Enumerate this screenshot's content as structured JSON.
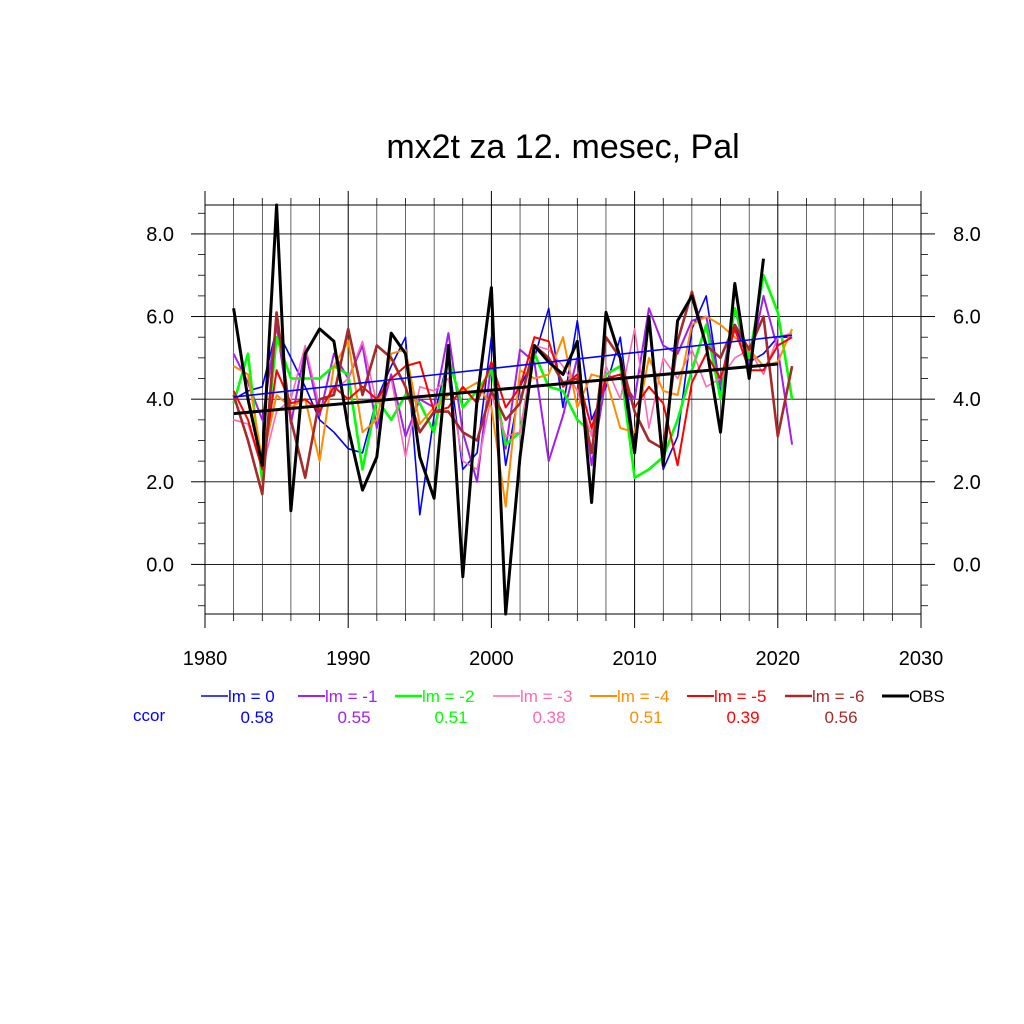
{
  "chart_data": {
    "type": "line",
    "title": "mx2t za 12. mesec, Pal",
    "xlim": [
      1980,
      2030
    ],
    "ylim": [
      -1.2,
      8.7
    ],
    "x_ticks": [
      1980,
      1990,
      2000,
      2010,
      2020,
      2030
    ],
    "x_tick_labels": [
      "1980",
      "1990",
      "2000",
      "2010",
      "2020",
      "2030"
    ],
    "y_ticks": [
      0,
      2,
      4,
      6,
      8
    ],
    "y_tick_labels": [
      "0.0",
      "2.0",
      "4.0",
      "6.0",
      "8.0"
    ],
    "grid": true,
    "legend_position": "below",
    "ccor_label": "ccor",
    "years": [
      1982,
      1983,
      1984,
      1985,
      1986,
      1987,
      1988,
      1989,
      1990,
      1991,
      1992,
      1993,
      1994,
      1995,
      1996,
      1997,
      1998,
      1999,
      2000,
      2001,
      2002,
      2003,
      2004,
      2005,
      2006,
      2007,
      2008,
      2009,
      2010,
      2011,
      2012,
      2013,
      2014,
      2015,
      2016,
      2017,
      2018,
      2019,
      2020,
      2021
    ],
    "series": [
      {
        "name": "lm = 0",
        "ccor": "0.58",
        "color": "#0000ff",
        "width": 1.6,
        "values": [
          4.0,
          4.2,
          4.3,
          5.7,
          5.0,
          4.3,
          3.5,
          3.2,
          2.8,
          2.7,
          4.0,
          4.8,
          5.5,
          1.2,
          3.6,
          5.0,
          2.3,
          2.7,
          5.5,
          2.4,
          4.3,
          5.0,
          6.2,
          3.8,
          5.9,
          3.5,
          4.3,
          5.5,
          2.8,
          5.9,
          2.3,
          3.1,
          5.7,
          6.5,
          4.2,
          5.8,
          4.9,
          5.1,
          5.5,
          5.5
        ]
      },
      {
        "name": "lm = -1",
        "ccor": "0.55",
        "color": "#a020f0",
        "width": 2,
        "values": [
          5.1,
          4.4,
          3.5,
          5.8,
          3.4,
          5.2,
          3.6,
          5.1,
          4.5,
          5.3,
          3.3,
          4.6,
          3.1,
          4.0,
          3.8,
          5.6,
          3.2,
          2.0,
          4.9,
          2.8,
          5.2,
          4.9,
          2.5,
          3.6,
          5.0,
          2.4,
          4.5,
          4.5,
          4.0,
          6.2,
          5.3,
          5.1,
          5.9,
          6.0,
          4.3,
          6.2,
          4.8,
          6.5,
          5.2,
          2.9
        ]
      },
      {
        "name": "lm = -2",
        "ccor": "0.51",
        "color": "#00ff00",
        "width": 2.6,
        "values": [
          3.9,
          5.1,
          2.0,
          5.5,
          4.5,
          4.5,
          4.5,
          4.8,
          4.6,
          2.3,
          4.0,
          3.5,
          4.1,
          3.9,
          3.2,
          5.0,
          3.8,
          4.2,
          4.7,
          2.9,
          3.2,
          5.1,
          4.3,
          4.2,
          3.5,
          3.2,
          4.6,
          4.8,
          2.1,
          2.3,
          2.6,
          3.5,
          4.7,
          5.8,
          4.0,
          6.2,
          5.0,
          7.0,
          6.1,
          4.0
        ]
      },
      {
        "name": "lm = -3",
        "ccor": "0.38",
        "color": "#ff69b4",
        "width": 1.6,
        "values": [
          3.5,
          3.4,
          2.3,
          3.7,
          4.0,
          5.3,
          3.8,
          4.2,
          4.5,
          5.4,
          3.9,
          4.5,
          2.6,
          4.3,
          4.2,
          4.5,
          2.5,
          2.3,
          4.1,
          3.1,
          3.2,
          5.3,
          5.2,
          4.8,
          4.2,
          3.1,
          4.8,
          4.0,
          5.7,
          3.3,
          5.0,
          4.5,
          5.2,
          4.3,
          4.5,
          5.0,
          5.2,
          4.6,
          5.5,
          5.6
        ]
      },
      {
        "name": "lm = -4",
        "ccor": "0.51",
        "color": "#ff8c00",
        "width": 2,
        "values": [
          4.8,
          4.6,
          2.5,
          4.1,
          3.8,
          4.0,
          2.5,
          4.8,
          5.4,
          3.2,
          3.5,
          5.1,
          5.2,
          3.4,
          3.8,
          4.1,
          4.2,
          4.4,
          3.8,
          1.4,
          4.7,
          4.5,
          4.6,
          5.5,
          3.8,
          4.6,
          4.5,
          3.3,
          3.2,
          5.0,
          4.2,
          4.1,
          5.8,
          6.0,
          5.8,
          5.5,
          5.2,
          4.8,
          4.9,
          5.7
        ]
      },
      {
        "name": "lm = -5",
        "ccor": "0.39",
        "color": "#ff0000",
        "width": 2,
        "values": [
          4.2,
          3.5,
          2.3,
          4.7,
          3.9,
          4.0,
          3.7,
          4.3,
          4.0,
          4.3,
          4.0,
          4.5,
          4.8,
          4.9,
          3.7,
          3.8,
          4.3,
          3.9,
          4.9,
          3.8,
          4.3,
          5.5,
          5.4,
          4.3,
          4.6,
          3.3,
          4.5,
          4.6,
          3.8,
          4.3,
          3.9,
          2.4,
          4.4,
          5.1,
          4.5,
          5.7,
          4.7,
          4.7,
          5.3,
          5.5
        ]
      },
      {
        "name": "lm = -6",
        "ccor": "0.56",
        "color": "#a52a2a",
        "width": 2.6,
        "values": [
          4.1,
          3.0,
          1.7,
          6.1,
          3.5,
          2.1,
          4.0,
          4.1,
          5.7,
          4.1,
          5.3,
          5.0,
          4.3,
          3.2,
          3.7,
          3.7,
          3.2,
          3.0,
          4.2,
          3.5,
          3.9,
          5.3,
          5.0,
          4.4,
          4.5,
          2.7,
          5.5,
          5.0,
          3.7,
          3.0,
          2.8,
          5.4,
          6.6,
          5.3,
          5.0,
          5.8,
          5.2,
          6.0,
          3.1,
          4.8
        ]
      },
      {
        "name": "OBS",
        "ccor": "",
        "color": "#000000",
        "width": 3,
        "values": [
          6.2,
          4.0,
          2.4,
          8.7,
          1.3,
          5.1,
          5.7,
          5.4,
          3.3,
          1.8,
          2.6,
          5.6,
          5.1,
          2.6,
          1.6,
          5.3,
          -0.3,
          4.0,
          6.7,
          -1.2,
          2.6,
          5.3,
          4.9,
          4.6,
          5.4,
          1.5,
          6.1,
          5.0,
          2.7,
          6.0,
          2.4,
          5.9,
          6.5,
          5.3,
          3.2,
          6.8,
          4.5,
          7.4,
          null,
          null
        ]
      }
    ],
    "trend_lines": [
      {
        "series": "lm = 0",
        "color": "#0000ff",
        "width": 1.6,
        "x": [
          1982,
          2021
        ],
        "y": [
          4.05,
          5.55
        ]
      },
      {
        "series": "OBS",
        "color": "#000000",
        "width": 3,
        "x": [
          1982,
          2020
        ],
        "y": [
          3.65,
          4.85
        ]
      }
    ]
  }
}
